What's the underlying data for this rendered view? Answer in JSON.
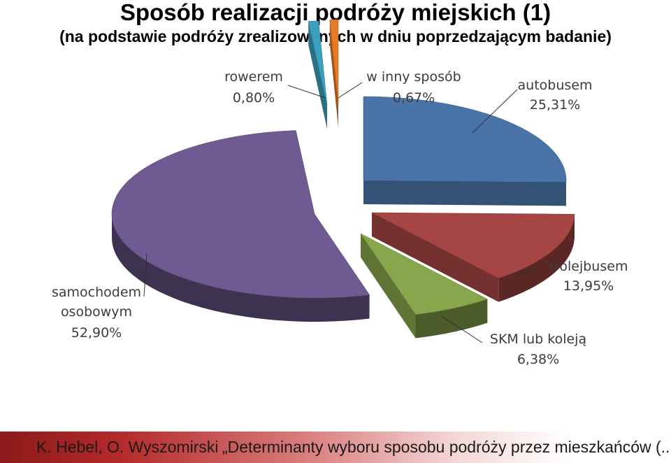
{
  "header": {
    "title": "Sposób realizacji podróży miejskich (1)",
    "subtitle": "(na podstawie podróży zrealizowanych w dniu poprzedzającym badanie)"
  },
  "chart_data": {
    "type": "pie",
    "style": "3d-exploded",
    "legend": "none (data labels with leader lines)",
    "slices": [
      {
        "label": "autobusem",
        "value_text": "25,31%",
        "value": 25.31,
        "color": "#4a74a8"
      },
      {
        "label": "trolejbusem",
        "value_text": "13,95%",
        "value": 13.95,
        "color": "#a64644"
      },
      {
        "label": "SKM lub koleją",
        "value_text": "6,38%",
        "value": 6.38,
        "color": "#88a64c"
      },
      {
        "label": "samochodem osobowym",
        "label_lines": [
          "samochodem",
          "osobowym"
        ],
        "value_text": "52,90%",
        "value": 52.9,
        "color": "#6f5a91"
      },
      {
        "label": "rowerem",
        "value_text": "0,80%",
        "value": 0.8,
        "color": "#3aa0bd"
      },
      {
        "label": "w inny sposób",
        "value_text": "0,67%",
        "value": 0.67,
        "color": "#e27b2a"
      }
    ]
  },
  "footer": {
    "authors": "K. Hebel, O. Wyszomirski",
    "work": "„Determinanty wyboru sposobu podróży przez mieszkańców  (...)\""
  }
}
